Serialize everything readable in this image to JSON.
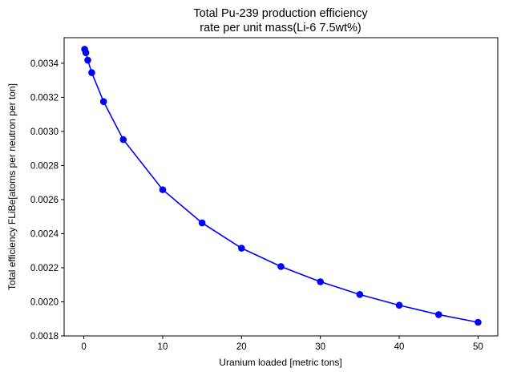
{
  "chart_data": {
    "type": "line",
    "title_lines": [
      "Total Pu-239 production efficiency",
      "rate per unit mass(Li-6 7.5wt%)"
    ],
    "xlabel": "Uranium loaded [metric tons]",
    "ylabel": "Total efficiency FLiBe[atoms per neutron per ton]",
    "xlim": [
      -2.5,
      52.5
    ],
    "ylim": [
      0.0018,
      0.00355
    ],
    "xticks": [
      0,
      10,
      20,
      30,
      40,
      50
    ],
    "xtick_labels": [
      "0",
      "10",
      "20",
      "30",
      "40",
      "50"
    ],
    "yticks": [
      0.0018,
      0.002,
      0.0022,
      0.0024,
      0.0026,
      0.0028,
      0.003,
      0.0032,
      0.0034
    ],
    "ytick_labels": [
      "0.0018",
      "0.0020",
      "0.0022",
      "0.0024",
      "0.0026",
      "0.0028",
      "0.0030",
      "0.0032",
      "0.0034"
    ],
    "grid": false,
    "series": [
      {
        "color": "#0000ff",
        "marker": "circle",
        "x": [
          0.1,
          0.25,
          0.5,
          1,
          2.5,
          5,
          10,
          15,
          20,
          25,
          30,
          35,
          40,
          45,
          50
        ],
        "y": [
          0.003482,
          0.003462,
          0.003418,
          0.003345,
          0.003175,
          0.002952,
          0.002658,
          0.002463,
          0.002315,
          0.002207,
          0.002118,
          0.002043,
          0.00198,
          0.001925,
          0.00188
        ]
      }
    ]
  }
}
